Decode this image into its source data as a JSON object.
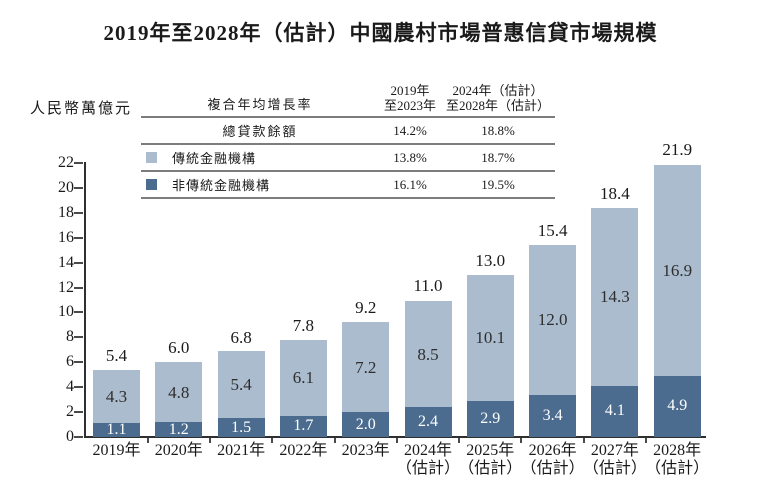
{
  "title": "2019年至2028年（估計）中國農村市場普惠信貸市場規模",
  "unit_label": "人民幣萬億元",
  "cagr_table": {
    "header": {
      "col1": "複合年均增長率",
      "col2_line1": "2019年",
      "col2_line2": "至2023年",
      "col3_line1": "2024年（估計）",
      "col3_line2": "至2028年（估計）"
    },
    "rows": [
      {
        "label": "總貸款餘額",
        "cagr_2019_2023": "14.2%",
        "cagr_2024_2028": "18.8%"
      },
      {
        "label": "傳統金融機構",
        "swatch_color": "#aabccd",
        "cagr_2019_2023": "13.8%",
        "cagr_2024_2028": "18.7%"
      },
      {
        "label": "非傳統金融機構",
        "swatch_color": "#4b6c8f",
        "cagr_2019_2023": "16.1%",
        "cagr_2024_2028": "19.5%"
      }
    ]
  },
  "chart_data": {
    "type": "bar",
    "stacked": true,
    "title": "2019年至2028年（估計）中國農村市場普惠信貸市場規模",
    "ylabel": "人民幣萬億元",
    "ylim": [
      0,
      22
    ],
    "y_ticks": [
      0,
      2,
      4,
      6,
      8,
      10,
      12,
      14,
      16,
      18,
      20,
      22
    ],
    "grid": false,
    "legend_position": "top-table",
    "categories": [
      {
        "line1": "2019年",
        "line2": ""
      },
      {
        "line1": "2020年",
        "line2": ""
      },
      {
        "line1": "2021年",
        "line2": ""
      },
      {
        "line1": "2022年",
        "line2": ""
      },
      {
        "line1": "2023年",
        "line2": ""
      },
      {
        "line1": "2024年",
        "line2": "（估計）"
      },
      {
        "line1": "2025年",
        "line2": "（估計）"
      },
      {
        "line1": "2026年",
        "line2": "（估計）"
      },
      {
        "line1": "2027年",
        "line2": "（估計）"
      },
      {
        "line1": "2028年",
        "line2": "（估計）"
      }
    ],
    "series": [
      {
        "name": "傳統金融機構",
        "stack_position": "top",
        "color": "#aabccd",
        "label_color": "#2e2e2e",
        "values": [
          4.3,
          4.8,
          5.4,
          6.1,
          7.2,
          8.5,
          10.1,
          12.0,
          14.3,
          16.9
        ]
      },
      {
        "name": "非傳統金融機構",
        "stack_position": "bottom",
        "color": "#4b6c8f",
        "label_color": "#ffffff",
        "values": [
          1.1,
          1.2,
          1.5,
          1.7,
          2.0,
          2.4,
          2.9,
          3.4,
          4.1,
          4.9
        ]
      }
    ],
    "totals": [
      5.4,
      6.0,
      6.8,
      7.8,
      9.2,
      11.0,
      13.0,
      15.4,
      18.4,
      21.9
    ]
  },
  "colors": {
    "traditional": "#aabccd",
    "non_traditional": "#4b6c8f",
    "axis": "#2f2f2f",
    "rule": "#7d7d7d"
  }
}
